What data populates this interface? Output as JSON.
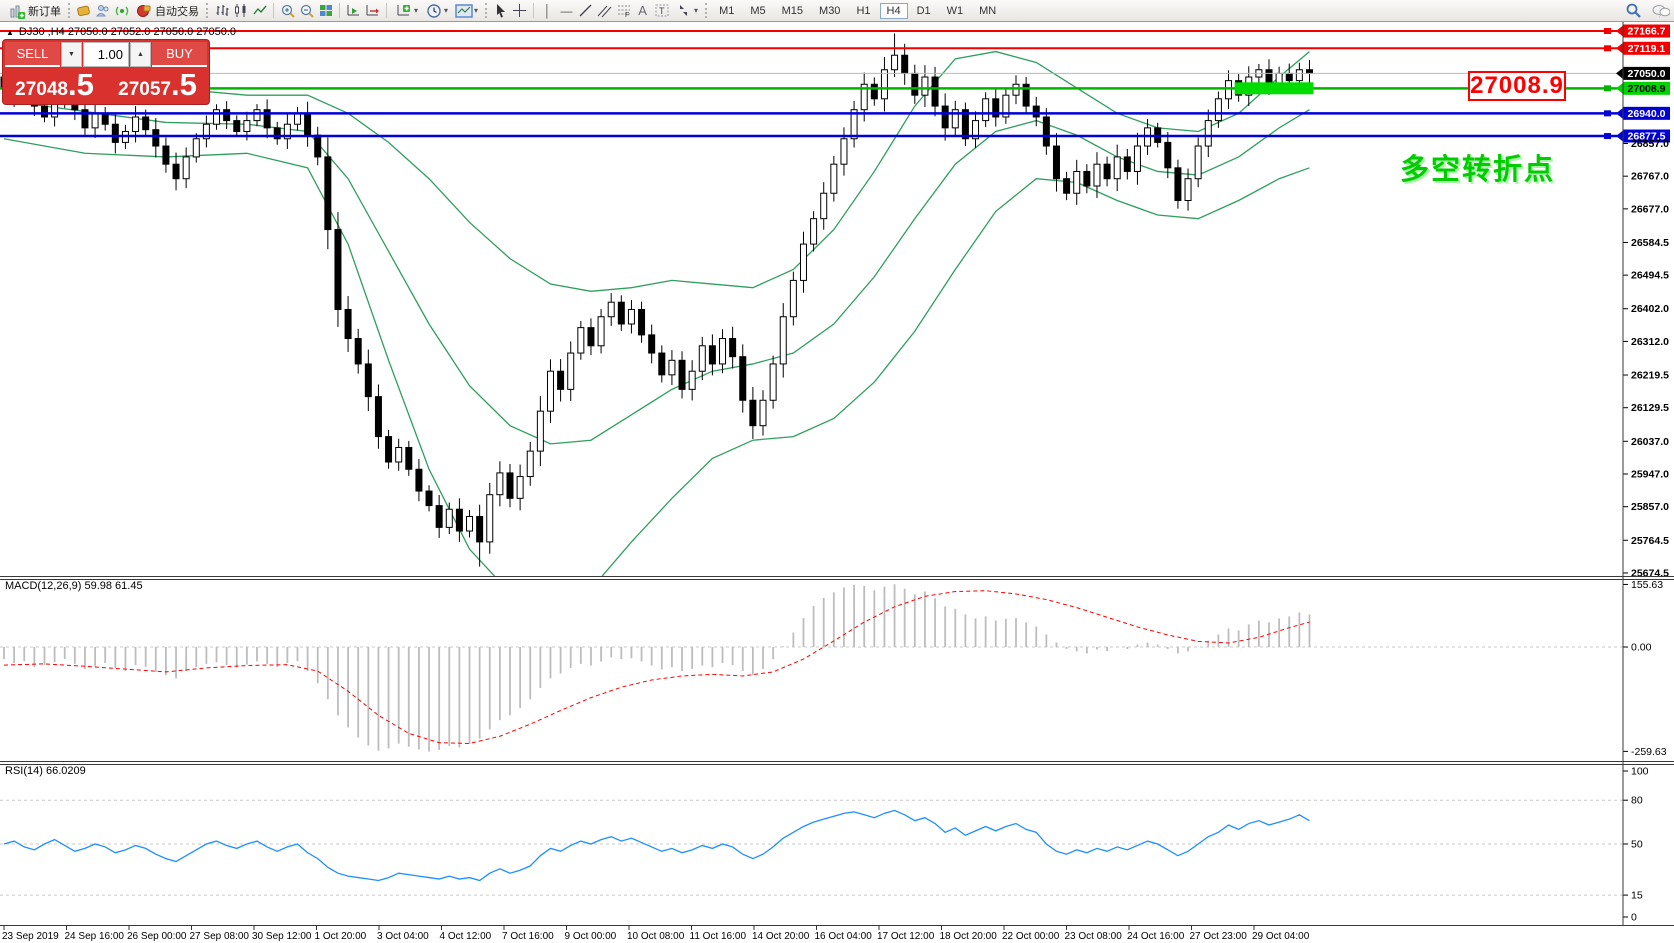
{
  "toolbar": {
    "new_order": "新订单",
    "auto_trading": "自动交易",
    "timeframes": [
      "M1",
      "M5",
      "M15",
      "M30",
      "H1",
      "H4",
      "D1",
      "W1",
      "MN"
    ],
    "active_timeframe": "H4"
  },
  "trade_panel": {
    "sell_label": "SELL",
    "buy_label": "BUY",
    "volume": "1.00",
    "sell_price_main": "27048",
    "sell_price_frac": ".5",
    "buy_price_main": "27057",
    "buy_price_frac": ".5"
  },
  "chart": {
    "title": "DJ30 ,H4  27050.0 27052.0 27050.0 27050.0",
    "callout": "27008.9",
    "annotation": "多空转折点",
    "macd_label": "MACD(12,26,9) 59.98 61.45",
    "rsi_label": "RSI(14) 66.0209"
  },
  "chart_data": {
    "type": "candlestick+indicators",
    "symbol": "DJ30",
    "period": "H4",
    "level_lines": [
      {
        "price": 27166.7,
        "color": "#f20000",
        "width": 2,
        "badge": "red",
        "marker": true
      },
      {
        "price": 27119.1,
        "color": "#f20000",
        "width": 2,
        "badge": "red",
        "marker": true
      },
      {
        "price": 27050.0,
        "color": "#b8b8b8",
        "width": 1,
        "badge": "black",
        "marker": false
      },
      {
        "price": 27008.9,
        "color": "#00b400",
        "width": 2.5,
        "badge": "green",
        "marker": true,
        "highlight": [
          122,
          129
        ]
      },
      {
        "price": 26940.0,
        "color": "#0000d8",
        "width": 2.5,
        "badge": "blue",
        "marker": true
      },
      {
        "price": 26877.5,
        "color": "#0000d8",
        "width": 2.5,
        "badge": "blue",
        "marker": true
      }
    ],
    "price_axis_ticks": [
      26857.0,
      26767.0,
      26677.0,
      26584.5,
      26494.5,
      26402.0,
      26312.0,
      26219.5,
      26129.5,
      26037.0,
      25947.0,
      25857.0,
      25764.5,
      25674.5
    ],
    "time_axis_labels": [
      "23 Sep 2019",
      "24 Sep 16:00",
      "26 Sep 00:00",
      "27 Sep 08:00",
      "30 Sep 12:00",
      "1 Oct 20:00",
      "3 Oct 04:00",
      "4 Oct 12:00",
      "7 Oct 16:00",
      "9 Oct 00:00",
      "10 Oct 08:00",
      "11 Oct 16:00",
      "14 Oct 20:00",
      "16 Oct 04:00",
      "17 Oct 12:00",
      "18 Oct 20:00",
      "22 Oct 00:00",
      "23 Oct 08:00",
      "24 Oct 16:00",
      "27 Oct 23:00",
      "29 Oct 04:00"
    ],
    "candles_first_open": 27040,
    "candle_closes": [
      27010,
      26980,
      27015,
      26960,
      26930,
      26970,
      27000,
      26950,
      26900,
      26940,
      26910,
      26860,
      26890,
      26930,
      26895,
      26850,
      26800,
      26760,
      26820,
      26870,
      26910,
      26950,
      26920,
      26890,
      26920,
      26950,
      26900,
      26870,
      26910,
      26940,
      26880,
      26820,
      26620,
      26400,
      26320,
      26250,
      26160,
      26050,
      25980,
      26020,
      25960,
      25900,
      25860,
      25800,
      25850,
      25790,
      25830,
      25760,
      25890,
      25950,
      25880,
      25940,
      26010,
      26120,
      26230,
      26180,
      26280,
      26350,
      26300,
      26380,
      26420,
      26360,
      26400,
      26330,
      26280,
      26220,
      26260,
      26180,
      26230,
      26300,
      26250,
      26320,
      26270,
      26150,
      26080,
      26150,
      26250,
      26380,
      26480,
      26580,
      26650,
      26720,
      26800,
      26870,
      26950,
      27020,
      26980,
      27060,
      27100,
      27050,
      26990,
      27040,
      26960,
      26900,
      26950,
      26870,
      26920,
      26980,
      26930,
      26990,
      27020,
      26960,
      26930,
      26850,
      26760,
      26720,
      26780,
      26740,
      26800,
      26760,
      26820,
      26780,
      26850,
      26900,
      26860,
      26790,
      26700,
      26760,
      26850,
      26920,
      26980,
      27030,
      26990,
      27040,
      27060,
      27020,
      27050,
      27030,
      27060,
      27050
    ],
    "wick_overrides": {
      "47": {
        "low": 25692
      },
      "88": {
        "high": 27160
      }
    },
    "bollinger": {
      "upper": [
        [
          0,
          27080
        ],
        [
          8,
          27060
        ],
        [
          16,
          27010
        ],
        [
          24,
          26990
        ],
        [
          30,
          26990
        ],
        [
          34,
          26940
        ],
        [
          38,
          26860
        ],
        [
          42,
          26760
        ],
        [
          46,
          26640
        ],
        [
          50,
          26540
        ],
        [
          54,
          26470
        ],
        [
          58,
          26450
        ],
        [
          62,
          26460
        ],
        [
          66,
          26480
        ],
        [
          70,
          26470
        ],
        [
          74,
          26460
        ],
        [
          78,
          26510
        ],
        [
          82,
          26620
        ],
        [
          86,
          26780
        ],
        [
          90,
          26960
        ],
        [
          94,
          27090
        ],
        [
          98,
          27110
        ],
        [
          102,
          27080
        ],
        [
          106,
          27010
        ],
        [
          110,
          26940
        ],
        [
          114,
          26900
        ],
        [
          118,
          26890
        ],
        [
          122,
          26940
        ],
        [
          126,
          27040
        ],
        [
          129,
          27110
        ]
      ],
      "middle": [
        [
          0,
          26975
        ],
        [
          8,
          26945
        ],
        [
          16,
          26915
        ],
        [
          24,
          26910
        ],
        [
          30,
          26890
        ],
        [
          34,
          26760
        ],
        [
          38,
          26560
        ],
        [
          42,
          26360
        ],
        [
          46,
          26190
        ],
        [
          50,
          26080
        ],
        [
          54,
          26030
        ],
        [
          58,
          26040
        ],
        [
          62,
          26110
        ],
        [
          66,
          26180
        ],
        [
          70,
          26230
        ],
        [
          74,
          26250
        ],
        [
          78,
          26280
        ],
        [
          82,
          26360
        ],
        [
          86,
          26490
        ],
        [
          90,
          26650
        ],
        [
          94,
          26800
        ],
        [
          98,
          26890
        ],
        [
          102,
          26920
        ],
        [
          106,
          26880
        ],
        [
          110,
          26820
        ],
        [
          114,
          26780
        ],
        [
          118,
          26770
        ],
        [
          122,
          26820
        ],
        [
          126,
          26900
        ],
        [
          129,
          26950
        ]
      ],
      "lower": [
        [
          0,
          26870
        ],
        [
          8,
          26830
        ],
        [
          16,
          26820
        ],
        [
          24,
          26830
        ],
        [
          30,
          26790
        ],
        [
          34,
          26580
        ],
        [
          38,
          26260
        ],
        [
          42,
          25960
        ],
        [
          46,
          25740
        ],
        [
          50,
          25620
        ],
        [
          54,
          25590
        ],
        [
          58,
          25630
        ],
        [
          62,
          25760
        ],
        [
          66,
          25880
        ],
        [
          70,
          25990
        ],
        [
          74,
          26040
        ],
        [
          78,
          26050
        ],
        [
          82,
          26100
        ],
        [
          86,
          26200
        ],
        [
          90,
          26340
        ],
        [
          94,
          26510
        ],
        [
          98,
          26670
        ],
        [
          102,
          26760
        ],
        [
          106,
          26750
        ],
        [
          110,
          26700
        ],
        [
          114,
          26660
        ],
        [
          118,
          26650
        ],
        [
          122,
          26700
        ],
        [
          126,
          26760
        ],
        [
          129,
          26790
        ]
      ]
    },
    "macd": {
      "values": [
        59.98,
        61.45
      ],
      "axis": [
        155.63,
        0.0,
        -259.63
      ],
      "histogram": [
        -30,
        -40,
        -35,
        -50,
        -45,
        -38,
        -30,
        -42,
        -55,
        -48,
        -40,
        -52,
        -60,
        -45,
        -50,
        -62,
        -70,
        -78,
        -60,
        -50,
        -42,
        -38,
        -45,
        -52,
        -44,
        -36,
        -42,
        -50,
        -40,
        -35,
        -60,
        -90,
        -130,
        -170,
        -200,
        -225,
        -245,
        -258,
        -252,
        -240,
        -248,
        -255,
        -260,
        -256,
        -246,
        -250,
        -241,
        -228,
        -205,
        -182,
        -170,
        -152,
        -130,
        -102,
        -78,
        -66,
        -52,
        -42,
        -46,
        -36,
        -26,
        -30,
        -28,
        -36,
        -46,
        -56,
        -50,
        -60,
        -55,
        -46,
        -50,
        -40,
        -45,
        -60,
        -70,
        -55,
        -30,
        2,
        36,
        72,
        102,
        122,
        136,
        148,
        155,
        152,
        141,
        150,
        156,
        145,
        131,
        138,
        121,
        101,
        95,
        81,
        71,
        76,
        66,
        70,
        72,
        61,
        51,
        31,
        11,
        -5,
        -11,
        -16,
        -6,
        -10,
        1,
        -5,
        6,
        11,
        6,
        -5,
        -16,
        -11,
        1,
        16,
        31,
        46,
        41,
        56,
        66,
        61,
        71,
        76,
        86,
        81
      ],
      "signal": [
        [
          0,
          -45
        ],
        [
          4,
          -42
        ],
        [
          8,
          -48
        ],
        [
          12,
          -55
        ],
        [
          16,
          -62
        ],
        [
          20,
          -52
        ],
        [
          24,
          -46
        ],
        [
          28,
          -44
        ],
        [
          31,
          -60
        ],
        [
          34,
          -110
        ],
        [
          37,
          -170
        ],
        [
          40,
          -215
        ],
        [
          43,
          -238
        ],
        [
          46,
          -240
        ],
        [
          49,
          -222
        ],
        [
          52,
          -192
        ],
        [
          55,
          -158
        ],
        [
          58,
          -126
        ],
        [
          61,
          -100
        ],
        [
          64,
          -82
        ],
        [
          67,
          -72
        ],
        [
          70,
          -68
        ],
        [
          73,
          -72
        ],
        [
          76,
          -62
        ],
        [
          79,
          -30
        ],
        [
          82,
          15
        ],
        [
          85,
          62
        ],
        [
          88,
          100
        ],
        [
          91,
          126
        ],
        [
          94,
          138
        ],
        [
          97,
          140
        ],
        [
          100,
          132
        ],
        [
          103,
          118
        ],
        [
          106,
          98
        ],
        [
          109,
          74
        ],
        [
          112,
          50
        ],
        [
          115,
          30
        ],
        [
          118,
          14
        ],
        [
          121,
          10
        ],
        [
          124,
          24
        ],
        [
          127,
          48
        ],
        [
          129,
          62
        ]
      ]
    },
    "rsi": {
      "current": 66.0209,
      "axis": [
        100,
        80,
        50,
        15,
        0
      ],
      "levels": [
        80,
        50,
        15
      ],
      "values": [
        50,
        52,
        48,
        46,
        50,
        53,
        49,
        45,
        47,
        50,
        48,
        44,
        46,
        49,
        47,
        43,
        40,
        38,
        42,
        46,
        50,
        52,
        49,
        47,
        50,
        52,
        48,
        45,
        48,
        50,
        44,
        40,
        34,
        30,
        28,
        27,
        26,
        25,
        27,
        30,
        29,
        28,
        27,
        26,
        28,
        26,
        27,
        25,
        30,
        33,
        30,
        32,
        35,
        42,
        47,
        45,
        49,
        52,
        50,
        53,
        55,
        52,
        54,
        51,
        48,
        45,
        47,
        44,
        46,
        49,
        47,
        50,
        48,
        43,
        40,
        43,
        48,
        54,
        58,
        62,
        65,
        67,
        69,
        71,
        72,
        70,
        68,
        71,
        73,
        70,
        66,
        68,
        64,
        58,
        61,
        56,
        59,
        62,
        59,
        62,
        64,
        60,
        58,
        50,
        45,
        43,
        46,
        44,
        47,
        45,
        48,
        46,
        49,
        52,
        50,
        46,
        42,
        45,
        50,
        55,
        58,
        63,
        60,
        64,
        66,
        63,
        65,
        67,
        70,
        66
      ]
    }
  }
}
